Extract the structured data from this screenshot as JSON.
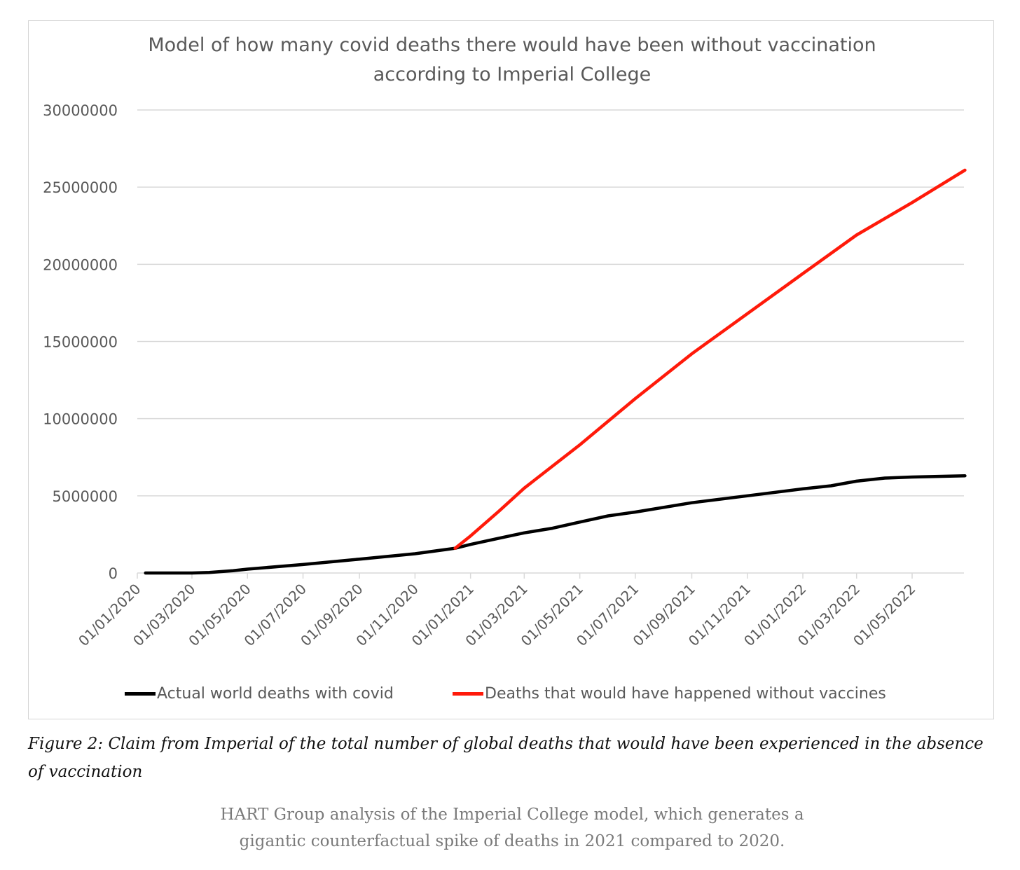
{
  "chart_data": {
    "type": "line",
    "title": "Model of how many covid deaths there would have been without vaccination according to Imperial College",
    "title_lines": [
      "Model of how many covid deaths there would have been without vaccination",
      "according to Imperial College"
    ],
    "xlabel": "",
    "ylabel": "",
    "ylim": [
      0,
      30000000
    ],
    "y_ticks": [
      0,
      5000000,
      10000000,
      15000000,
      20000000,
      25000000,
      30000000
    ],
    "y_tick_labels": [
      "0",
      "5000000",
      "10000000",
      "15000000",
      "20000000",
      "25000000",
      "30000000"
    ],
    "x_range": [
      "2020-01-01",
      "2022-06-30"
    ],
    "x_ticks": [
      "2020-01-01",
      "2020-03-01",
      "2020-05-01",
      "2020-07-01",
      "2020-09-01",
      "2020-11-01",
      "2021-01-01",
      "2021-03-01",
      "2021-05-01",
      "2021-07-01",
      "2021-09-01",
      "2021-11-01",
      "2022-01-01",
      "2022-03-01",
      "2022-05-01"
    ],
    "x_tick_labels": [
      "01/01/2020",
      "01/03/2020",
      "01/05/2020",
      "01/07/2020",
      "01/09/2020",
      "01/11/2020",
      "01/01/2021",
      "01/03/2021",
      "01/05/2021",
      "01/07/2021",
      "01/09/2021",
      "01/11/2021",
      "01/01/2022",
      "01/03/2022",
      "01/05/2022"
    ],
    "grid": "horizontal",
    "legend_position": "bottom",
    "series": [
      {
        "name": "Actual world deaths with covid",
        "color": "#000000",
        "points": [
          [
            "2020-01-10",
            0
          ],
          [
            "2020-03-01",
            0
          ],
          [
            "2020-03-20",
            30000
          ],
          [
            "2020-04-15",
            150000
          ],
          [
            "2020-05-01",
            250000
          ],
          [
            "2020-07-01",
            550000
          ],
          [
            "2020-09-01",
            900000
          ],
          [
            "2020-11-01",
            1250000
          ],
          [
            "2020-12-15",
            1600000
          ],
          [
            "2021-01-01",
            1850000
          ],
          [
            "2021-02-01",
            2250000
          ],
          [
            "2021-03-01",
            2600000
          ],
          [
            "2021-04-01",
            2900000
          ],
          [
            "2021-05-01",
            3300000
          ],
          [
            "2021-06-01",
            3700000
          ],
          [
            "2021-07-01",
            3950000
          ],
          [
            "2021-09-01",
            4550000
          ],
          [
            "2021-11-01",
            5000000
          ],
          [
            "2022-01-01",
            5450000
          ],
          [
            "2022-02-01",
            5650000
          ],
          [
            "2022-03-01",
            5950000
          ],
          [
            "2022-04-01",
            6150000
          ],
          [
            "2022-05-01",
            6220000
          ],
          [
            "2022-06-28",
            6300000
          ]
        ]
      },
      {
        "name": "Deaths that would have happened without vaccines",
        "color": "#ff1a0a",
        "points": [
          [
            "2020-12-15",
            1600000
          ],
          [
            "2021-01-01",
            2400000
          ],
          [
            "2021-02-01",
            4000000
          ],
          [
            "2021-03-01",
            5500000
          ],
          [
            "2021-05-01",
            8300000
          ],
          [
            "2021-07-01",
            11300000
          ],
          [
            "2021-09-01",
            14200000
          ],
          [
            "2021-11-01",
            16800000
          ],
          [
            "2022-01-01",
            19400000
          ],
          [
            "2022-03-01",
            21900000
          ],
          [
            "2022-05-01",
            24000000
          ],
          [
            "2022-06-28",
            26100000
          ]
        ]
      }
    ]
  },
  "figure_caption": "Figure 2: Claim from Imperial of the total number of global deaths that would have been experienced in the absence of vaccination",
  "sub_caption_lines": [
    "HART Group analysis of the Imperial College model, which generates a",
    "gigantic counterfactual spike of deaths in 2021 compared to 2020."
  ]
}
